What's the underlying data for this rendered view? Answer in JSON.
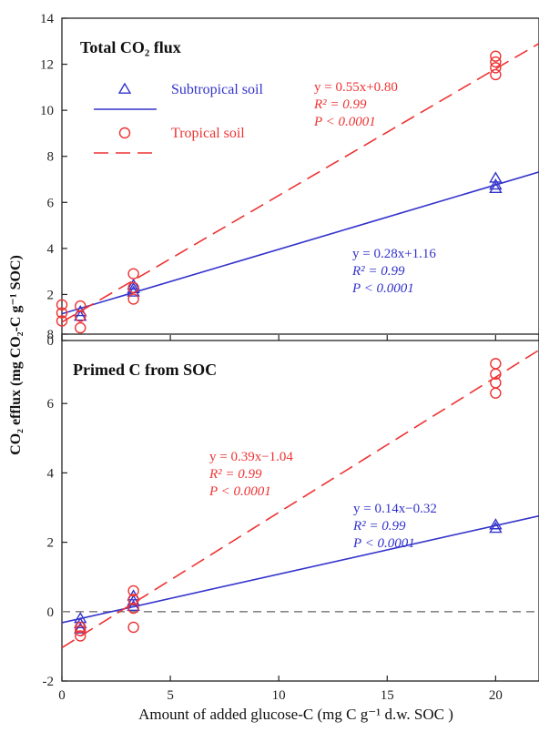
{
  "chart_data": [
    {
      "type": "scatter",
      "title": "Total CO₂ flux",
      "xlim": [
        0,
        22
      ],
      "ylim": [
        0,
        14
      ],
      "yticks": [
        0,
        2,
        4,
        6,
        8,
        10,
        12,
        14
      ],
      "legend_position": "top-left",
      "series": [
        {
          "name": "Subtropical soil",
          "marker": "triangle",
          "color": "#3333cc",
          "line_style": "solid",
          "points": [
            [
              0.85,
              1.05
            ],
            [
              0.85,
              1.25
            ],
            [
              3.3,
              2.1
            ],
            [
              3.3,
              2.25
            ],
            [
              3.3,
              2.4
            ],
            [
              20,
              6.6
            ],
            [
              20,
              6.75
            ],
            [
              20,
              7.05
            ]
          ],
          "fit": {
            "slope": 0.28,
            "intercept": 1.16
          },
          "stats": [
            "y = 0.28x+1.16",
            "R² = 0.99",
            "P < 0.0001"
          ]
        },
        {
          "name": "Tropical soil",
          "marker": "circle",
          "color": "#ee3333",
          "line_style": "dashed",
          "points": [
            [
              0,
              0.85
            ],
            [
              0,
              1.2
            ],
            [
              0,
              1.55
            ],
            [
              0.85,
              0.55
            ],
            [
              0.85,
              1.05
            ],
            [
              0.85,
              1.5
            ],
            [
              3.3,
              1.8
            ],
            [
              3.3,
              2.3
            ],
            [
              3.3,
              2.9
            ],
            [
              20,
              11.55
            ],
            [
              20,
              11.85
            ],
            [
              20,
              12.1
            ],
            [
              20,
              12.35
            ]
          ],
          "fit": {
            "slope": 0.55,
            "intercept": 0.8
          },
          "stats": [
            "y = 0.55x+0.80",
            "R² = 0.99",
            "P < 0.0001"
          ]
        }
      ]
    },
    {
      "type": "scatter",
      "title": "Primed C from SOC",
      "xlim": [
        0,
        22
      ],
      "ylim": [
        -2,
        8
      ],
      "yticks": [
        -2,
        0,
        2,
        4,
        6,
        8
      ],
      "xticks": [
        0,
        5,
        10,
        15,
        20
      ],
      "zero_reference_line": true,
      "series": [
        {
          "name": "Subtropical soil",
          "marker": "triangle",
          "color": "#3333cc",
          "line_style": "solid",
          "points": [
            [
              0.85,
              -0.2
            ],
            [
              0.85,
              -0.35
            ],
            [
              0.85,
              -0.5
            ],
            [
              3.3,
              0.15
            ],
            [
              3.3,
              0.3
            ],
            [
              3.3,
              0.45
            ],
            [
              20,
              2.4
            ],
            [
              20,
              2.5
            ]
          ],
          "fit": {
            "slope": 0.14,
            "intercept": -0.32
          },
          "stats": [
            "y = 0.14x−0.32",
            "R² = 0.99",
            "P < 0.0001"
          ]
        },
        {
          "name": "Tropical soil",
          "marker": "circle",
          "color": "#ee3333",
          "line_style": "dashed",
          "points": [
            [
              0.85,
              -0.45
            ],
            [
              0.85,
              -0.55
            ],
            [
              0.85,
              -0.7
            ],
            [
              3.3,
              -0.45
            ],
            [
              3.3,
              0.1
            ],
            [
              3.3,
              0.35
            ],
            [
              3.3,
              0.6
            ],
            [
              20,
              6.3
            ],
            [
              20,
              6.6
            ],
            [
              20,
              6.85
            ],
            [
              20,
              7.15
            ]
          ],
          "fit": {
            "slope": 0.39,
            "intercept": -1.04
          },
          "stats": [
            "y = 0.39x−1.04",
            "R² = 0.99",
            "P < 0.0001"
          ]
        }
      ]
    }
  ],
  "shared": {
    "ylabel": "CO₂ efflux (mg CO₂-C g⁻¹ SOC)",
    "xlabel": "Amount of added glucose-C (mg C g⁻¹ d.w. SOC )",
    "legend": [
      {
        "label": "Subtropical soil",
        "color": "#3333cc"
      },
      {
        "label": "Tropical soil",
        "color": "#ee3333"
      }
    ],
    "colors": {
      "axis": "#222222",
      "zero_line": "#888888"
    }
  }
}
